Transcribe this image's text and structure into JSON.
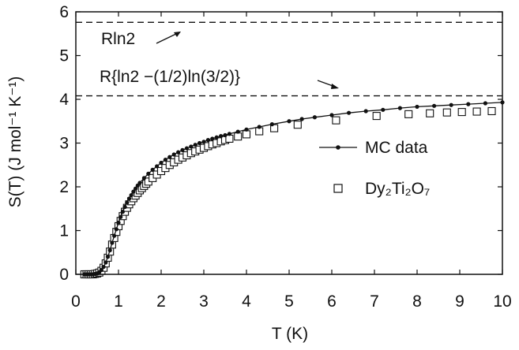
{
  "chart_data": {
    "type": "scatter",
    "xlabel": "T (K)",
    "ylabel": "S(T) (J mol⁻¹ K⁻¹)",
    "xlim": [
      0,
      10
    ],
    "ylim": [
      0,
      6
    ],
    "x_ticks": [
      "0",
      "1",
      "2",
      "3",
      "4",
      "5",
      "6",
      "7",
      "8",
      "9",
      "10"
    ],
    "y_ticks": [
      "0",
      "1",
      "2",
      "3",
      "4",
      "5",
      "6"
    ],
    "grid": false,
    "legend_position": "right",
    "reference_lines": [
      {
        "label": "Rln2",
        "y": 5.76,
        "style": "dashed"
      },
      {
        "label": "R{ln2 −(1/2)ln(3/2)}",
        "y": 4.08,
        "style": "dashed"
      }
    ],
    "series": [
      {
        "name": "MC data",
        "marker": "filled-circle-with-line",
        "x": [
          0.2,
          0.25,
          0.3,
          0.35,
          0.4,
          0.45,
          0.5,
          0.55,
          0.6,
          0.65,
          0.7,
          0.75,
          0.8,
          0.85,
          0.9,
          0.95,
          1.0,
          1.05,
          1.1,
          1.15,
          1.2,
          1.25,
          1.3,
          1.35,
          1.4,
          1.45,
          1.5,
          1.6,
          1.7,
          1.8,
          1.9,
          2.0,
          2.1,
          2.2,
          2.3,
          2.4,
          2.5,
          2.6,
          2.7,
          2.8,
          2.9,
          3.0,
          3.1,
          3.2,
          3.3,
          3.4,
          3.5,
          3.6,
          3.8,
          4.0,
          4.3,
          4.6,
          5.0,
          5.3,
          5.6,
          6.0,
          6.4,
          6.8,
          7.2,
          7.6,
          8.0,
          8.4,
          8.8,
          9.2,
          9.6,
          10.0
        ],
        "y": [
          0.0,
          0.0,
          0.0,
          0.0,
          0.0,
          0.01,
          0.02,
          0.05,
          0.1,
          0.17,
          0.27,
          0.4,
          0.55,
          0.72,
          0.88,
          1.03,
          1.18,
          1.31,
          1.43,
          1.54,
          1.64,
          1.73,
          1.81,
          1.89,
          1.96,
          2.03,
          2.09,
          2.2,
          2.3,
          2.39,
          2.47,
          2.55,
          2.62,
          2.68,
          2.74,
          2.79,
          2.84,
          2.88,
          2.92,
          2.96,
          3.0,
          3.03,
          3.07,
          3.1,
          3.13,
          3.16,
          3.18,
          3.21,
          3.26,
          3.31,
          3.37,
          3.43,
          3.5,
          3.55,
          3.59,
          3.64,
          3.69,
          3.73,
          3.76,
          3.8,
          3.83,
          3.85,
          3.87,
          3.89,
          3.91,
          3.93
        ]
      },
      {
        "name": "Dy₂Ti₂O₇",
        "marker": "open-square",
        "x": [
          0.2,
          0.25,
          0.3,
          0.35,
          0.4,
          0.45,
          0.5,
          0.55,
          0.6,
          0.65,
          0.7,
          0.75,
          0.8,
          0.85,
          0.9,
          0.95,
          1.0,
          1.05,
          1.1,
          1.15,
          1.2,
          1.25,
          1.3,
          1.35,
          1.4,
          1.45,
          1.5,
          1.55,
          1.6,
          1.65,
          1.7,
          1.8,
          1.9,
          2.0,
          2.1,
          2.2,
          2.3,
          2.4,
          2.5,
          2.6,
          2.7,
          2.8,
          2.9,
          3.0,
          3.1,
          3.2,
          3.3,
          3.4,
          3.5,
          3.6,
          3.8,
          4.0,
          4.3,
          4.65,
          5.2,
          6.1,
          7.05,
          7.8,
          8.3,
          8.7,
          9.05,
          9.4,
          9.75
        ],
        "y": [
          0.0,
          0.0,
          0.0,
          0.0,
          0.0,
          0.01,
          0.02,
          0.04,
          0.08,
          0.15,
          0.25,
          0.38,
          0.52,
          0.68,
          0.83,
          0.97,
          1.1,
          1.22,
          1.33,
          1.43,
          1.52,
          1.6,
          1.67,
          1.74,
          1.8,
          1.86,
          1.92,
          1.97,
          2.02,
          2.07,
          2.12,
          2.2,
          2.28,
          2.36,
          2.43,
          2.5,
          2.56,
          2.62,
          2.67,
          2.72,
          2.77,
          2.81,
          2.85,
          2.89,
          2.93,
          2.97,
          3.0,
          3.04,
          3.07,
          3.1,
          3.15,
          3.2,
          3.27,
          3.34,
          3.42,
          3.52,
          3.62,
          3.66,
          3.68,
          3.7,
          3.71,
          3.72,
          3.73
        ]
      }
    ],
    "colors": {
      "ink": "#111111",
      "marker_open_fill": "#ffffff"
    }
  }
}
